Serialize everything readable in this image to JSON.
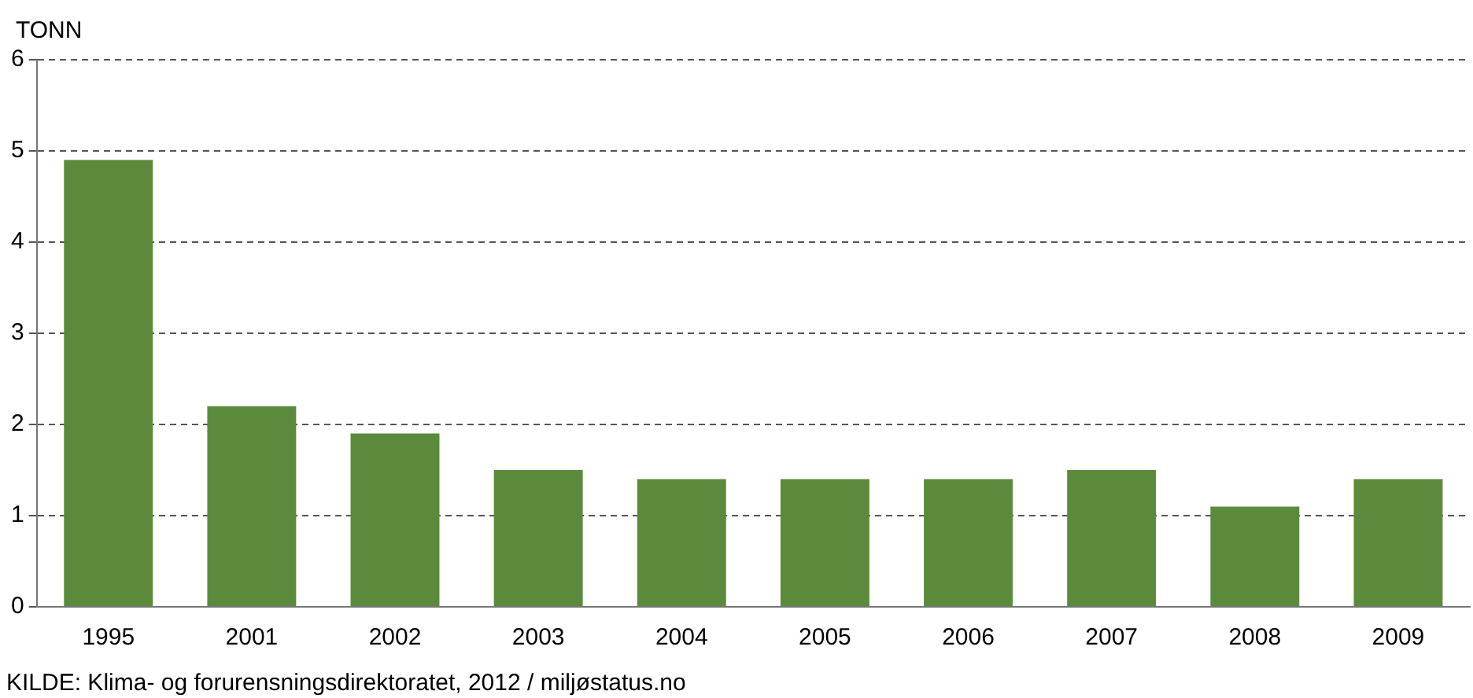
{
  "chart_data": {
    "type": "bar",
    "ylabel": "TONN",
    "categories": [
      "1995",
      "2001",
      "2002",
      "2003",
      "2004",
      "2005",
      "2006",
      "2007",
      "2008",
      "2009"
    ],
    "values": [
      4.9,
      2.2,
      1.9,
      1.5,
      1.4,
      1.4,
      1.4,
      1.5,
      1.1,
      1.4
    ],
    "color": "#5b8a3c",
    "ylim": [
      0,
      6
    ],
    "yticks": [
      0,
      1,
      2,
      3,
      4,
      5,
      6
    ],
    "grid": "y",
    "annotations": [
      "KILDE: Klima- og forurensningsdirektoratet, 2012 / miljøstatus.no"
    ]
  }
}
